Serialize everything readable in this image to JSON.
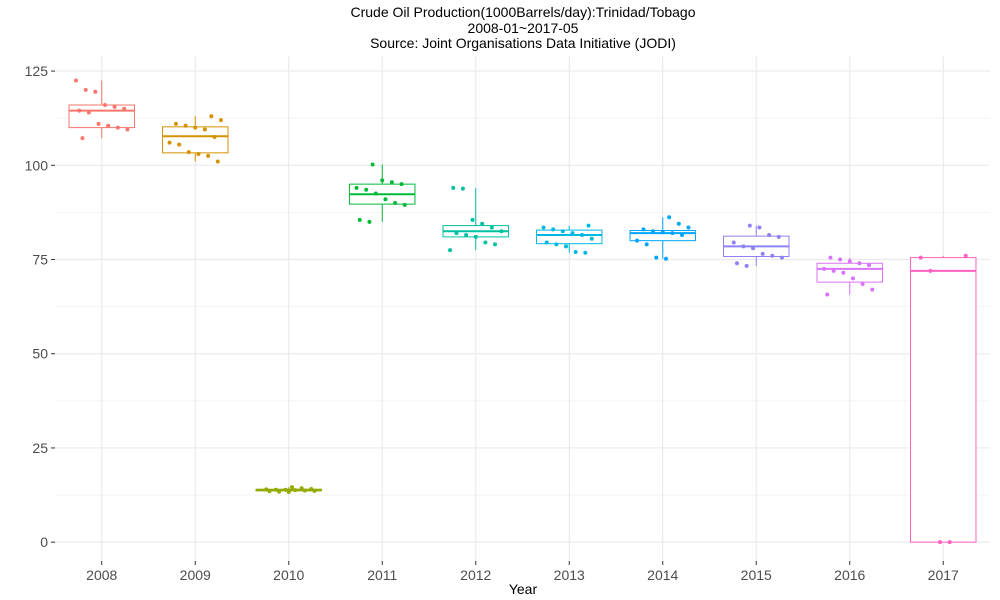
{
  "chart_data": {
    "type": "boxplot",
    "title_lines": [
      "Crude Oil Production(1000Barrels/day):Trinidad/Tobago",
      "2008-01~2017-05",
      "Source: Joint Organisations Data Initiative (JODI)"
    ],
    "xlabel": "Year",
    "ylabel": "",
    "ylim": [
      -5,
      129
    ],
    "y_ticks": [
      0,
      25,
      50,
      75,
      100,
      125
    ],
    "grid": true,
    "legend": "none",
    "categories": [
      "2008",
      "2009",
      "2010",
      "2011",
      "2012",
      "2013",
      "2014",
      "2015",
      "2016",
      "2017"
    ],
    "colors": [
      "#F8766D",
      "#D39200",
      "#93AA00",
      "#00BA38",
      "#00C19F",
      "#00B9E3",
      "#00A5FF",
      "#8F81F8",
      "#DB72FB",
      "#FF61C3"
    ],
    "boxes": [
      {
        "q1": 110.0,
        "median": 114.5,
        "q3": 116.0,
        "low": 107.2,
        "high": 122.5
      },
      {
        "q1": 103.3,
        "median": 107.7,
        "q3": 110.2,
        "low": 101.0,
        "high": 113.0
      },
      {
        "q1": 13.6,
        "median": 13.9,
        "q3": 14.0,
        "low": 13.3,
        "high": 14.6
      },
      {
        "q1": 89.7,
        "median": 92.3,
        "q3": 95.0,
        "low": 85.0,
        "high": 100.2
      },
      {
        "q1": 81.0,
        "median": 82.5,
        "q3": 84.0,
        "low": 77.5,
        "high": 94.0
      },
      {
        "q1": 79.2,
        "median": 81.5,
        "q3": 82.8,
        "low": 76.8,
        "high": 84.0
      },
      {
        "q1": 80.0,
        "median": 82.0,
        "q3": 82.7,
        "low": 75.2,
        "high": 86.2
      },
      {
        "q1": 75.8,
        "median": 78.5,
        "q3": 81.2,
        "low": 73.3,
        "high": 84.0
      },
      {
        "q1": 69.0,
        "median": 72.5,
        "q3": 74.0,
        "low": 65.7,
        "high": 75.5
      },
      {
        "q1": 0.0,
        "median": 72.0,
        "q3": 75.5,
        "low": 0.0,
        "high": 76.0
      }
    ],
    "points": [
      [
        122.5,
        120.0,
        119.5,
        116.0,
        115.5,
        115.0,
        114.5,
        114.0,
        111.0,
        110.5,
        110.0,
        109.5,
        107.2
      ],
      [
        113.0,
        112.0,
        111.0,
        110.5,
        110.0,
        109.5,
        107.5,
        106.0,
        105.5,
        103.5,
        103.0,
        102.5,
        101.0
      ],
      [
        14.6,
        14.3,
        14.1,
        14.0,
        13.9,
        13.9,
        13.8,
        13.7,
        13.6,
        13.5,
        13.4,
        13.3
      ],
      [
        100.2,
        96.0,
        95.5,
        95.0,
        94.0,
        93.5,
        92.5,
        91.0,
        90.0,
        89.5,
        85.5,
        85.0
      ],
      [
        94.0,
        93.8,
        85.5,
        84.5,
        83.5,
        82.5,
        82.0,
        81.5,
        81.0,
        79.5,
        79.0,
        77.5
      ],
      [
        84.0,
        83.5,
        83.0,
        82.5,
        82.0,
        81.5,
        80.5,
        79.5,
        79.0,
        78.5,
        77.0,
        76.8
      ],
      [
        86.2,
        84.5,
        83.5,
        83.0,
        82.5,
        82.2,
        82.0,
        81.5,
        80.0,
        79.0,
        75.5,
        75.2
      ],
      [
        84.0,
        83.5,
        81.5,
        81.0,
        79.5,
        78.5,
        78.0,
        76.5,
        76.0,
        75.5,
        74.0,
        73.3
      ],
      [
        75.5,
        75.0,
        74.5,
        74.0,
        73.5,
        72.5,
        72.0,
        71.5,
        70.0,
        68.5,
        67.0,
        65.7
      ],
      [
        76.0,
        75.5,
        72.0,
        0.0,
        0.0
      ]
    ]
  }
}
